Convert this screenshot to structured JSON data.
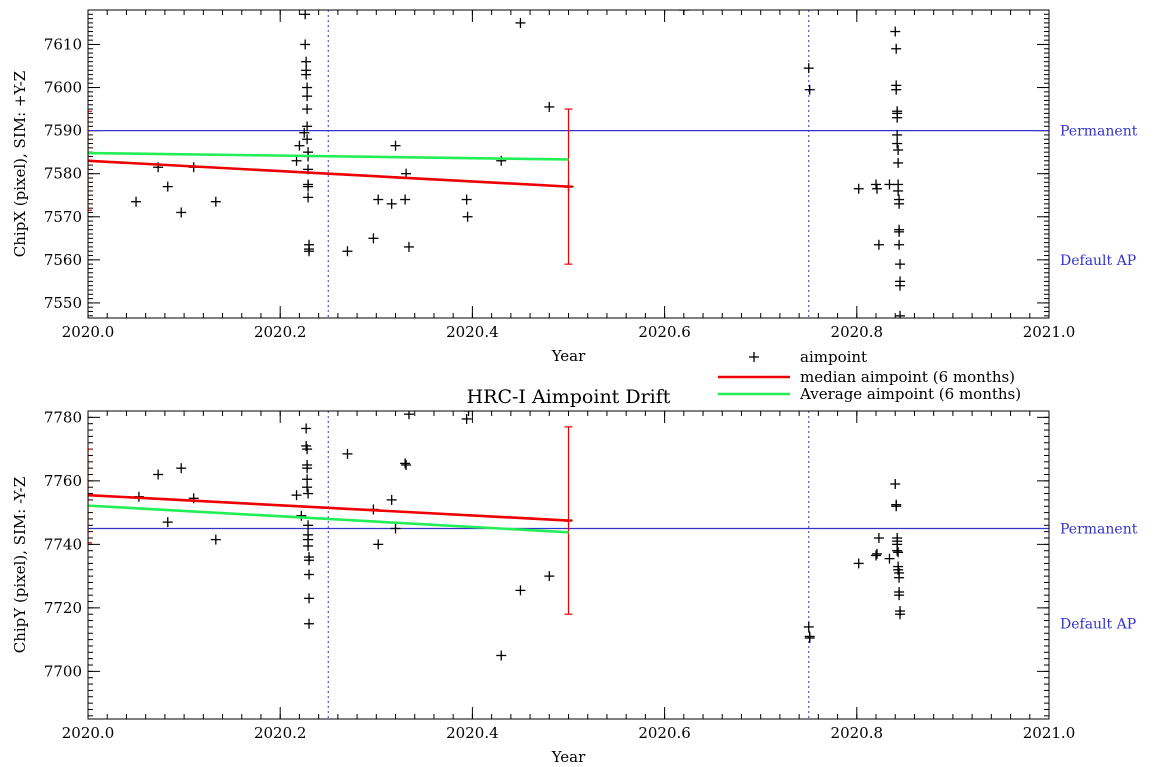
{
  "chart_data": [
    {
      "type": "scatter",
      "title": "",
      "xlabel": "Year",
      "ylabel": "ChipX (pixel), SIM: +Y-Z",
      "xlim": [
        2020.0,
        2021.0
      ],
      "ylim": [
        7546.5,
        7618
      ],
      "xticks": [
        2020.0,
        2020.2,
        2020.4,
        2020.6,
        2020.8,
        2021.0
      ],
      "xtick_labels": [
        "2020.0",
        "2020.2",
        "2020.4",
        "2020.6",
        "2020.8",
        "2021.0"
      ],
      "yticks": [
        7550,
        7560,
        7570,
        7580,
        7590,
        7600,
        7610
      ],
      "ytick_labels": [
        "7550",
        "7560",
        "7570",
        "7580",
        "7590",
        "7600",
        "7610"
      ],
      "grid": false,
      "reference_lines": [
        {
          "label": "Permanent",
          "y": 7590,
          "color": "#3333cc"
        },
        {
          "label": "Default AP",
          "y": 7560,
          "color": "#3333cc",
          "line": false
        }
      ],
      "vertical_markers": [
        2020.25,
        2020.75
      ],
      "series": [
        {
          "name": "aimpoint",
          "marker": "+",
          "color": "#000000",
          "points": [
            [
              2020.05,
              7573.5
            ],
            [
              2020.073,
              7581.5
            ],
            [
              2020.083,
              7577
            ],
            [
              2020.097,
              7571
            ],
            [
              2020.11,
              7581.5
            ],
            [
              2020.133,
              7573.5
            ],
            [
              2020.217,
              7583
            ],
            [
              2020.22,
              7586.5
            ],
            [
              2020.225,
              7589.5
            ],
            [
              2020.226,
              7617
            ],
            [
              2020.226,
              7610
            ],
            [
              2020.227,
              7606
            ],
            [
              2020.227,
              7604
            ],
            [
              2020.227,
              7603
            ],
            [
              2020.228,
              7600
            ],
            [
              2020.228,
              7598
            ],
            [
              2020.228,
              7595
            ],
            [
              2020.228,
              7591
            ],
            [
              2020.228,
              7588
            ],
            [
              2020.229,
              7585
            ],
            [
              2020.229,
              7584
            ],
            [
              2020.229,
              7581
            ],
            [
              2020.229,
              7577.5
            ],
            [
              2020.229,
              7577
            ],
            [
              2020.229,
              7574.5
            ],
            [
              2020.23,
              7563.5
            ],
            [
              2020.23,
              7562.5
            ],
            [
              2020.23,
              7562
            ],
            [
              2020.27,
              7562
            ],
            [
              2020.297,
              7565
            ],
            [
              2020.302,
              7574
            ],
            [
              2020.316,
              7573
            ],
            [
              2020.32,
              7586.5
            ],
            [
              2020.33,
              7574
            ],
            [
              2020.331,
              7580
            ],
            [
              2020.334,
              7563
            ],
            [
              2020.394,
              7574
            ],
            [
              2020.395,
              7570
            ],
            [
              2020.43,
              7583
            ],
            [
              2020.45,
              7615
            ],
            [
              2020.48,
              7595.5
            ],
            [
              2020.5,
              7577
            ],
            [
              2020.62,
              7618
            ],
            [
              2020.75,
              7604.5
            ],
            [
              2020.751,
              7599.5
            ],
            [
              2020.802,
              7576.5
            ],
            [
              2020.82,
              7577.5
            ],
            [
              2020.821,
              7576.5
            ],
            [
              2020.823,
              7563.5
            ],
            [
              2020.834,
              7577.5
            ],
            [
              2020.84,
              7613
            ],
            [
              2020.841,
              7609
            ],
            [
              2020.841,
              7600.5
            ],
            [
              2020.841,
              7599.5
            ],
            [
              2020.842,
              7594.5
            ],
            [
              2020.842,
              7594
            ],
            [
              2020.842,
              7593
            ],
            [
              2020.842,
              7589
            ],
            [
              2020.842,
              7587
            ],
            [
              2020.843,
              7585.5
            ],
            [
              2020.843,
              7582.5
            ],
            [
              2020.843,
              7577.5
            ],
            [
              2020.843,
              7576
            ],
            [
              2020.844,
              7574
            ],
            [
              2020.844,
              7573
            ],
            [
              2020.844,
              7567
            ],
            [
              2020.844,
              7566.5
            ],
            [
              2020.844,
              7563.5
            ],
            [
              2020.845,
              7559
            ],
            [
              2020.845,
              7555
            ],
            [
              2020.845,
              7554
            ],
            [
              2020.845,
              7547
            ]
          ]
        },
        {
          "name": "median aimpoint (6 months)",
          "type": "line",
          "color": "#ee0000",
          "x": [
            2020.0,
            2020.5
          ],
          "y": [
            7583,
            7577
          ],
          "errorbars": [
            {
              "x": 2020.0,
              "center": 7583,
              "low": 7571.5,
              "high": 7594.5
            },
            {
              "x": 2020.5,
              "center": 7577,
              "low": 7559,
              "high": 7595
            }
          ]
        },
        {
          "name": "Average aimpoint (6 months)",
          "type": "line",
          "color": "#22ee55",
          "x": [
            2020.0,
            2020.5
          ],
          "y": [
            7584.8,
            7583.3
          ]
        }
      ]
    },
    {
      "type": "scatter",
      "title": "HRC-I Aimpoint Drift",
      "xlabel": "Year",
      "ylabel": "ChipY (pixel), SIM: -Y-Z",
      "xlim": [
        2020.0,
        2021.0
      ],
      "ylim": [
        7685,
        7782
      ],
      "xticks": [
        2020.0,
        2020.2,
        2020.4,
        2020.6,
        2020.8,
        2021.0
      ],
      "xtick_labels": [
        "2020.0",
        "2020.2",
        "2020.4",
        "2020.6",
        "2020.8",
        "2021.0"
      ],
      "yticks": [
        7700,
        7720,
        7740,
        7760,
        7780
      ],
      "ytick_labels": [
        "7700",
        "7720",
        "7740",
        "7760",
        "7780"
      ],
      "grid": false,
      "reference_lines": [
        {
          "label": "Permanent",
          "y": 7745,
          "color": "#3333cc"
        },
        {
          "label": "Default AP",
          "y": 7715,
          "color": "#3333cc",
          "line": false
        }
      ],
      "vertical_markers": [
        2020.25,
        2020.75
      ],
      "series": [
        {
          "name": "aimpoint",
          "marker": "+",
          "color": "#000000",
          "points": [
            [
              2020.053,
              7755
            ],
            [
              2020.073,
              7762
            ],
            [
              2020.083,
              7747
            ],
            [
              2020.097,
              7764
            ],
            [
              2020.11,
              7754.5
            ],
            [
              2020.133,
              7741.5
            ],
            [
              2020.217,
              7755.5
            ],
            [
              2020.222,
              7749
            ],
            [
              2020.227,
              7776.5
            ],
            [
              2020.227,
              7771
            ],
            [
              2020.228,
              7770
            ],
            [
              2020.228,
              7765
            ],
            [
              2020.228,
              7764
            ],
            [
              2020.228,
              7760.5
            ],
            [
              2020.228,
              7758
            ],
            [
              2020.229,
              7756
            ],
            [
              2020.229,
              7746
            ],
            [
              2020.229,
              7743
            ],
            [
              2020.229,
              7741.5
            ],
            [
              2020.229,
              7739.5
            ],
            [
              2020.23,
              7736
            ],
            [
              2020.23,
              7735
            ],
            [
              2020.23,
              7730.5
            ],
            [
              2020.23,
              7723
            ],
            [
              2020.23,
              7715
            ],
            [
              2020.27,
              7768.5
            ],
            [
              2020.297,
              7751
            ],
            [
              2020.302,
              7740
            ],
            [
              2020.316,
              7754
            ],
            [
              2020.32,
              7745
            ],
            [
              2020.33,
              7765.5
            ],
            [
              2020.331,
              7765
            ],
            [
              2020.334,
              7781
            ],
            [
              2020.394,
              7779.5
            ],
            [
              2020.396,
              7782
            ],
            [
              2020.43,
              7705
            ],
            [
              2020.45,
              7725.5
            ],
            [
              2020.48,
              7730
            ],
            [
              2020.75,
              7714
            ],
            [
              2020.751,
              7711
            ],
            [
              2020.751,
              7710.5
            ],
            [
              2020.802,
              7734
            ],
            [
              2020.82,
              7736.5
            ],
            [
              2020.821,
              7737
            ],
            [
              2020.823,
              7742
            ],
            [
              2020.834,
              7735.5
            ],
            [
              2020.84,
              7759
            ],
            [
              2020.841,
              7752.5
            ],
            [
              2020.841,
              7752
            ],
            [
              2020.842,
              7742
            ],
            [
              2020.842,
              7741
            ],
            [
              2020.842,
              7740
            ],
            [
              2020.842,
              7738
            ],
            [
              2020.843,
              7737.5
            ],
            [
              2020.843,
              7733
            ],
            [
              2020.843,
              7732
            ],
            [
              2020.844,
              7731
            ],
            [
              2020.844,
              7729.5
            ],
            [
              2020.844,
              7725
            ],
            [
              2020.844,
              7724
            ],
            [
              2020.845,
              7719
            ],
            [
              2020.845,
              7718
            ]
          ]
        },
        {
          "name": "median aimpoint (6 months)",
          "type": "line",
          "color": "#ee0000",
          "x": [
            2020.0,
            2020.5
          ],
          "y": [
            7755.5,
            7747.5
          ],
          "errorbars": [
            {
              "x": 2020.0,
              "center": 7755.5,
              "low": 7740.5,
              "high": 7770
            },
            {
              "x": 2020.5,
              "center": 7747.5,
              "low": 7718,
              "high": 7777
            }
          ]
        },
        {
          "name": "Average aimpoint (6 months)",
          "type": "line",
          "color": "#22ee55",
          "x": [
            2020.0,
            2020.5
          ],
          "y": [
            7752.2,
            7743.8
          ]
        }
      ]
    }
  ],
  "legend": {
    "placement": "between panels, center-right",
    "entries": [
      {
        "label": "aimpoint",
        "marker": "+",
        "color": "#000000"
      },
      {
        "label": "median aimpoint (6 months)",
        "color": "#ee0000"
      },
      {
        "label": "Average aimpoint (6 months)",
        "color": "#22ee55"
      }
    ]
  }
}
